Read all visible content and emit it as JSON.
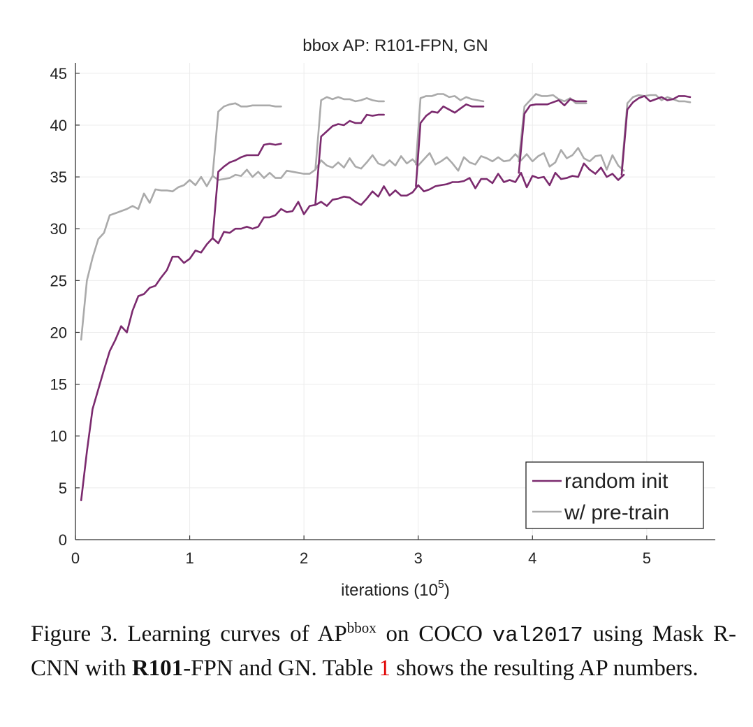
{
  "chart_data": {
    "type": "line",
    "title": "bbox AP: R101-FPN, GN",
    "xlabel": "iterations (10",
    "xlabel_exp": "5",
    "xlabel_close": ")",
    "xlim": [
      0,
      5.6
    ],
    "ylim": [
      0,
      46
    ],
    "xticks": [
      0,
      1,
      2,
      3,
      4,
      5
    ],
    "yticks": [
      0,
      5,
      10,
      15,
      20,
      25,
      30,
      35,
      40,
      45
    ],
    "grid": true,
    "legend_position": "bottom-right",
    "series": [
      {
        "name": "random init",
        "color": "#7b2a6e",
        "segments": [
          {
            "x": [
              0.05,
              0.1,
              0.15,
              0.2,
              0.25,
              0.3,
              0.35,
              0.4,
              0.45,
              0.5,
              0.55,
              0.6,
              0.65,
              0.7,
              0.75,
              0.8,
              0.85,
              0.9,
              0.95,
              1.0,
              1.05,
              1.1,
              1.15,
              1.2,
              1.25,
              1.3,
              1.35,
              1.4,
              1.45,
              1.5,
              1.55,
              1.6,
              1.65,
              1.7,
              1.75,
              1.8,
              1.85,
              1.9,
              1.95,
              2.0,
              2.05,
              2.1,
              2.15,
              2.2,
              2.25,
              2.3,
              2.35,
              2.4,
              2.45,
              2.5,
              2.55,
              2.6,
              2.65,
              2.7,
              2.75,
              2.8,
              2.85,
              2.9,
              2.95,
              3.0,
              3.05,
              3.1,
              3.15,
              3.2,
              3.25,
              3.3,
              3.35,
              3.4,
              3.45,
              3.5,
              3.55,
              3.6,
              3.65,
              3.7,
              3.75,
              3.8,
              3.85,
              3.9,
              3.95,
              4.0,
              4.05,
              4.1,
              4.15,
              4.2,
              4.25,
              4.3,
              4.35,
              4.4,
              4.45,
              4.5,
              4.55,
              4.6,
              4.65,
              4.7,
              4.75,
              4.8
            ],
            "y": [
              3.8,
              8.5,
              12.6,
              14.5,
              16.4,
              18.2,
              19.3,
              20.6,
              20.0,
              22.1,
              23.5,
              23.7,
              24.3,
              24.5,
              25.3,
              26.0,
              27.3,
              27.3,
              26.7,
              27.1,
              27.9,
              27.7,
              28.5,
              29.1,
              28.6,
              29.7,
              29.6,
              30.0,
              30.0,
              30.2,
              30.0,
              30.2,
              31.1,
              31.1,
              31.3,
              31.9,
              31.6,
              31.7,
              32.6,
              31.4,
              32.2,
              32.3,
              32.6,
              32.2,
              32.8,
              32.9,
              33.1,
              33.0,
              32.6,
              32.3,
              32.9,
              33.6,
              33.1,
              34.1,
              33.2,
              33.7,
              33.2,
              33.2,
              33.5,
              34.2,
              33.6,
              33.8,
              34.1,
              34.2,
              34.3,
              34.5,
              34.5,
              34.6,
              34.9,
              33.9,
              34.8,
              34.8,
              34.4,
              35.3,
              34.5,
              34.7,
              34.5,
              35.4,
              34.0,
              35.1,
              34.9,
              35.0,
              34.2,
              35.4,
              34.8,
              34.9,
              35.1,
              35.0,
              36.3,
              35.7,
              35.3,
              35.9,
              35.0,
              35.3,
              34.7,
              35.2
            ]
          },
          {
            "x": [
              1.2,
              1.25,
              1.3,
              1.35,
              1.4,
              1.45,
              1.5,
              1.55,
              1.6,
              1.65,
              1.7,
              1.75,
              1.8
            ],
            "y": [
              29.1,
              35.5,
              36.0,
              36.4,
              36.6,
              36.9,
              37.1,
              37.1,
              37.1,
              38.1,
              38.2,
              38.1,
              38.2
            ]
          },
          {
            "x": [
              2.1,
              2.15,
              2.2,
              2.25,
              2.3,
              2.35,
              2.4,
              2.45,
              2.5,
              2.55,
              2.6,
              2.65,
              2.7
            ],
            "y": [
              32.4,
              38.9,
              39.4,
              39.9,
              40.1,
              40.0,
              40.4,
              40.2,
              40.2,
              41.0,
              40.9,
              41.0,
              41.0
            ]
          },
          {
            "x": [
              2.98,
              3.02,
              3.07,
              3.12,
              3.17,
              3.22,
              3.27,
              3.32,
              3.37,
              3.42,
              3.47,
              3.52,
              3.57
            ],
            "y": [
              34.1,
              40.2,
              40.9,
              41.3,
              41.2,
              41.8,
              41.5,
              41.2,
              41.6,
              42.0,
              41.8,
              41.8,
              41.8
            ]
          },
          {
            "x": [
              3.88,
              3.93,
              3.98,
              4.03,
              4.08,
              4.13,
              4.18,
              4.23,
              4.28,
              4.33,
              4.38,
              4.43,
              4.47
            ],
            "y": [
              35.4,
              41.1,
              41.9,
              42.0,
              42.0,
              42.0,
              42.2,
              42.4,
              41.9,
              42.5,
              42.3,
              42.3,
              42.3
            ]
          },
          {
            "x": [
              4.78,
              4.83,
              4.88,
              4.93,
              4.98,
              5.03,
              5.08,
              5.13,
              5.18,
              5.23,
              5.28,
              5.33,
              5.38
            ],
            "y": [
              35.2,
              41.5,
              42.2,
              42.6,
              42.8,
              42.3,
              42.5,
              42.7,
              42.4,
              42.5,
              42.8,
              42.8,
              42.7
            ]
          }
        ]
      },
      {
        "name": "w/ pre-train",
        "color": "#aaaaaa",
        "segments": [
          {
            "x": [
              0.05,
              0.1,
              0.15,
              0.2,
              0.25,
              0.3,
              0.35,
              0.4,
              0.45,
              0.5,
              0.55,
              0.6,
              0.65,
              0.7,
              0.75,
              0.8,
              0.85,
              0.9,
              0.95,
              1.0,
              1.05,
              1.1,
              1.15,
              1.2,
              1.25,
              1.3,
              1.35,
              1.4,
              1.45,
              1.5,
              1.55,
              1.6,
              1.65,
              1.7,
              1.75,
              1.8,
              1.85,
              1.9,
              1.95,
              2.0,
              2.05,
              2.1,
              2.15,
              2.2,
              2.25,
              2.3,
              2.35,
              2.4,
              2.45,
              2.5,
              2.55,
              2.6,
              2.65,
              2.7,
              2.75,
              2.8,
              2.85,
              2.9,
              2.95,
              3.0,
              3.05,
              3.1,
              3.15,
              3.2,
              3.25,
              3.3,
              3.35,
              3.4,
              3.45,
              3.5,
              3.55,
              3.6,
              3.65,
              3.7,
              3.75,
              3.8,
              3.85,
              3.9,
              3.95,
              4.0,
              4.05,
              4.1,
              4.15,
              4.2,
              4.25,
              4.3,
              4.35,
              4.4,
              4.45,
              4.5,
              4.55,
              4.6,
              4.65,
              4.7,
              4.75,
              4.8
            ],
            "y": [
              19.3,
              25.0,
              27.2,
              29.0,
              29.6,
              31.3,
              31.5,
              31.7,
              31.9,
              32.2,
              31.9,
              33.4,
              32.5,
              33.8,
              33.7,
              33.7,
              33.6,
              34.0,
              34.2,
              34.7,
              34.2,
              35.0,
              34.1,
              35.1,
              34.7,
              34.8,
              34.9,
              35.2,
              35.1,
              35.7,
              35.0,
              35.5,
              34.9,
              35.4,
              34.9,
              34.9,
              35.6,
              35.5,
              35.4,
              35.3,
              35.3,
              35.7,
              36.6,
              36.1,
              35.9,
              36.4,
              35.9,
              36.8,
              36.0,
              35.8,
              36.4,
              37.1,
              36.3,
              36.1,
              36.6,
              36.1,
              37.0,
              36.3,
              36.7,
              36.1,
              36.7,
              37.3,
              36.2,
              36.5,
              36.9,
              36.3,
              35.6,
              36.9,
              36.4,
              36.2,
              37.0,
              36.8,
              36.5,
              36.9,
              36.5,
              36.6,
              37.2,
              36.6,
              37.2,
              36.5,
              37.0,
              37.3,
              36.0,
              36.4,
              37.6,
              36.8,
              37.1,
              37.8,
              36.8,
              36.5,
              37.0,
              37.1,
              35.7,
              37.1,
              36.1,
              35.6
            ]
          },
          {
            "x": [
              1.2,
              1.25,
              1.3,
              1.35,
              1.4,
              1.45,
              1.5,
              1.55,
              1.6,
              1.65,
              1.7,
              1.75,
              1.8
            ],
            "y": [
              35.1,
              41.3,
              41.8,
              42.0,
              42.1,
              41.8,
              41.8,
              41.9,
              41.9,
              41.9,
              41.9,
              41.8,
              41.8
            ]
          },
          {
            "x": [
              2.1,
              2.15,
              2.2,
              2.25,
              2.3,
              2.35,
              2.4,
              2.45,
              2.5,
              2.55,
              2.6,
              2.65,
              2.7
            ],
            "y": [
              35.7,
              42.4,
              42.7,
              42.5,
              42.7,
              42.5,
              42.5,
              42.3,
              42.4,
              42.6,
              42.4,
              42.3,
              42.3
            ]
          },
          {
            "x": [
              2.98,
              3.02,
              3.07,
              3.12,
              3.17,
              3.22,
              3.27,
              3.32,
              3.37,
              3.42,
              3.47,
              3.52,
              3.57
            ],
            "y": [
              36.2,
              42.6,
              42.8,
              42.8,
              43.0,
              43.0,
              42.7,
              42.8,
              42.4,
              42.7,
              42.5,
              42.4,
              42.3
            ]
          },
          {
            "x": [
              3.88,
              3.93,
              3.98,
              4.03,
              4.08,
              4.13,
              4.18,
              4.23,
              4.28,
              4.33,
              4.38,
              4.43,
              4.47
            ],
            "y": [
              36.5,
              41.8,
              42.4,
              43.0,
              42.8,
              42.8,
              42.9,
              42.5,
              42.3,
              42.6,
              42.1,
              42.1,
              42.1
            ]
          },
          {
            "x": [
              4.78,
              4.83,
              4.88,
              4.93,
              4.98,
              5.03,
              5.08,
              5.13,
              5.18,
              5.23,
              5.28,
              5.33,
              5.38
            ],
            "y": [
              35.6,
              42.1,
              42.7,
              42.9,
              42.8,
              42.9,
              42.9,
              42.4,
              42.7,
              42.5,
              42.3,
              42.3,
              42.2
            ]
          }
        ]
      }
    ]
  },
  "caption": {
    "prefix": "Figure 3. Learning curves of AP",
    "sup": "bbox",
    "mid1": " on COCO ",
    "mono": "val2017",
    "mid2": " using Mask R-CNN with ",
    "bold": "R101",
    "mid3": "-FPN and GN. Table ",
    "ref": "1",
    "suffix": " shows the resulting AP numbers."
  }
}
